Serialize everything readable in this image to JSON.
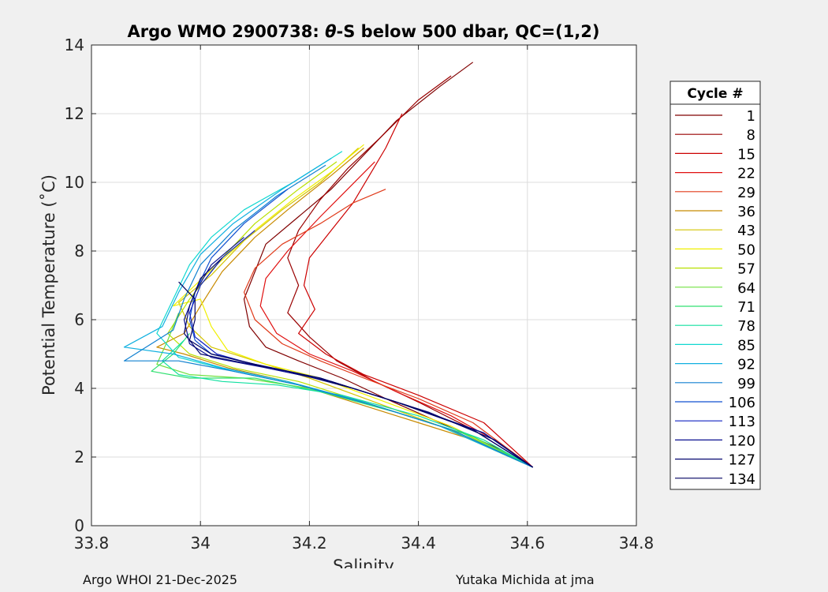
{
  "chart_data": {
    "type": "line",
    "title_prefix": "Argo WMO 2900738: ",
    "title_theta": "θ",
    "title_suffix": "-S below 500 dbar,  QC=(1,2)",
    "xlabel": "Salinity",
    "ylabel": "Potential Temperature (˚C)",
    "xlim": [
      33.8,
      34.8
    ],
    "ylim": [
      0,
      14
    ],
    "xticks": [
      33.8,
      34.0,
      34.2,
      34.4,
      34.6,
      34.8
    ],
    "xtick_labels": [
      "33.8",
      "34",
      "34.2",
      "34.4",
      "34.6",
      "34.8"
    ],
    "yticks": [
      0,
      2,
      4,
      6,
      8,
      10,
      12,
      14
    ],
    "ytick_labels": [
      "0",
      "2",
      "4",
      "6",
      "8",
      "10",
      "12",
      "14"
    ],
    "grid": true,
    "legend_title": "Cycle #",
    "legend_position": "right",
    "series": [
      {
        "name": "1",
        "color": "#800000",
        "points": [
          [
            34.5,
            13.5
          ],
          [
            34.44,
            12.8
          ],
          [
            34.36,
            11.8
          ],
          [
            34.3,
            10.8
          ],
          [
            34.24,
            9.8
          ],
          [
            34.18,
            9.0
          ],
          [
            34.12,
            8.2
          ],
          [
            34.1,
            7.4
          ],
          [
            34.08,
            6.6
          ],
          [
            34.09,
            5.8
          ],
          [
            34.12,
            5.2
          ],
          [
            34.18,
            4.8
          ],
          [
            34.26,
            4.3
          ],
          [
            34.34,
            3.7
          ],
          [
            34.44,
            3.0
          ],
          [
            34.54,
            2.3
          ],
          [
            34.61,
            1.7
          ]
        ]
      },
      {
        "name": "8",
        "color": "#990000",
        "points": [
          [
            34.46,
            13.1
          ],
          [
            34.4,
            12.4
          ],
          [
            34.33,
            11.3
          ],
          [
            34.27,
            10.4
          ],
          [
            34.22,
            9.5
          ],
          [
            34.18,
            8.6
          ],
          [
            34.16,
            7.8
          ],
          [
            34.18,
            7.0
          ],
          [
            34.16,
            6.2
          ],
          [
            34.2,
            5.5
          ],
          [
            34.25,
            4.8
          ],
          [
            34.32,
            4.2
          ],
          [
            34.4,
            3.6
          ],
          [
            34.5,
            2.8
          ],
          [
            34.61,
            1.7
          ]
        ]
      },
      {
        "name": "15",
        "color": "#cc0000",
        "points": [
          [
            34.37,
            12.0
          ],
          [
            34.34,
            11.0
          ],
          [
            34.31,
            10.2
          ],
          [
            34.28,
            9.4
          ],
          [
            34.24,
            8.6
          ],
          [
            34.2,
            7.8
          ],
          [
            34.19,
            7.0
          ],
          [
            34.21,
            6.3
          ],
          [
            34.18,
            5.6
          ],
          [
            34.23,
            5.0
          ],
          [
            34.3,
            4.4
          ],
          [
            34.4,
            3.8
          ],
          [
            34.52,
            3.0
          ],
          [
            34.61,
            1.7
          ]
        ]
      },
      {
        "name": "22",
        "color": "#e01010",
        "points": [
          [
            34.32,
            10.6
          ],
          [
            34.27,
            9.8
          ],
          [
            34.22,
            9.0
          ],
          [
            34.16,
            8.0
          ],
          [
            34.12,
            7.2
          ],
          [
            34.11,
            6.4
          ],
          [
            34.14,
            5.6
          ],
          [
            34.2,
            5.0
          ],
          [
            34.28,
            4.5
          ],
          [
            34.36,
            3.9
          ],
          [
            34.46,
            3.2
          ],
          [
            34.55,
            2.4
          ],
          [
            34.61,
            1.7
          ]
        ]
      },
      {
        "name": "29",
        "color": "#e03a1a",
        "points": [
          [
            34.34,
            9.8
          ],
          [
            34.28,
            9.4
          ],
          [
            34.22,
            8.8
          ],
          [
            34.15,
            8.2
          ],
          [
            34.1,
            7.5
          ],
          [
            34.08,
            6.8
          ],
          [
            34.1,
            6.0
          ],
          [
            34.15,
            5.3
          ],
          [
            34.22,
            4.8
          ],
          [
            34.3,
            4.3
          ],
          [
            34.4,
            3.7
          ],
          [
            34.5,
            3.0
          ],
          [
            34.61,
            1.7
          ]
        ]
      },
      {
        "name": "36",
        "color": "#c88a00",
        "points": [
          [
            34.3,
            11.0
          ],
          [
            34.24,
            10.2
          ],
          [
            34.16,
            9.2
          ],
          [
            34.1,
            8.4
          ],
          [
            34.04,
            7.4
          ],
          [
            34.0,
            6.4
          ],
          [
            33.97,
            5.6
          ],
          [
            33.92,
            5.2
          ],
          [
            33.97,
            5.0
          ],
          [
            34.05,
            4.6
          ],
          [
            34.16,
            4.2
          ],
          [
            34.28,
            3.6
          ],
          [
            34.4,
            3.0
          ],
          [
            34.52,
            2.4
          ],
          [
            34.61,
            1.7
          ]
        ]
      },
      {
        "name": "43",
        "color": "#d4c400",
        "points": [
          [
            34.29,
            11.0
          ],
          [
            34.22,
            10.0
          ],
          [
            34.15,
            9.2
          ],
          [
            34.08,
            8.3
          ],
          [
            34.02,
            7.3
          ],
          [
            33.96,
            6.5
          ],
          [
            33.98,
            5.8
          ],
          [
            34.02,
            5.2
          ],
          [
            34.1,
            4.8
          ],
          [
            34.2,
            4.3
          ],
          [
            34.32,
            3.6
          ],
          [
            34.44,
            2.9
          ],
          [
            34.55,
            2.2
          ],
          [
            34.61,
            1.7
          ]
        ]
      },
      {
        "name": "50",
        "color": "#f0f000",
        "points": [
          [
            34.3,
            11.1
          ],
          [
            34.24,
            10.3
          ],
          [
            34.17,
            9.5
          ],
          [
            34.1,
            8.6
          ],
          [
            34.03,
            7.6
          ],
          [
            33.95,
            6.4
          ],
          [
            34.0,
            6.6
          ],
          [
            34.02,
            5.8
          ],
          [
            34.05,
            5.1
          ],
          [
            34.12,
            4.7
          ],
          [
            34.22,
            4.3
          ],
          [
            34.34,
            3.6
          ],
          [
            34.46,
            2.9
          ],
          [
            34.61,
            1.7
          ]
        ]
      },
      {
        "name": "57",
        "color": "#b8e000",
        "points": [
          [
            34.25,
            10.6
          ],
          [
            34.18,
            9.8
          ],
          [
            34.1,
            8.8
          ],
          [
            34.04,
            7.8
          ],
          [
            33.98,
            6.6
          ],
          [
            33.94,
            5.6
          ],
          [
            33.98,
            5.0
          ],
          [
            34.06,
            4.6
          ],
          [
            34.18,
            4.2
          ],
          [
            34.3,
            3.6
          ],
          [
            34.44,
            2.9
          ],
          [
            34.61,
            1.7
          ]
        ]
      },
      {
        "name": "64",
        "color": "#70e040",
        "points": [
          [
            33.96,
            6.2
          ],
          [
            33.94,
            5.4
          ],
          [
            33.92,
            4.7
          ],
          [
            33.98,
            4.4
          ],
          [
            34.08,
            4.3
          ],
          [
            34.2,
            4.0
          ],
          [
            34.34,
            3.4
          ],
          [
            34.48,
            2.7
          ],
          [
            34.61,
            1.7
          ]
        ]
      },
      {
        "name": "71",
        "color": "#30e070",
        "points": [
          [
            33.98,
            5.6
          ],
          [
            33.95,
            5.0
          ],
          [
            33.91,
            4.5
          ],
          [
            33.98,
            4.3
          ],
          [
            34.1,
            4.3
          ],
          [
            34.22,
            3.9
          ],
          [
            34.36,
            3.3
          ],
          [
            34.5,
            2.6
          ],
          [
            34.61,
            1.7
          ]
        ]
      },
      {
        "name": "78",
        "color": "#10e0a0",
        "points": [
          [
            33.97,
            5.4
          ],
          [
            33.93,
            4.8
          ],
          [
            33.96,
            4.4
          ],
          [
            34.04,
            4.2
          ],
          [
            34.14,
            4.1
          ],
          [
            34.26,
            3.8
          ],
          [
            34.4,
            3.2
          ],
          [
            34.52,
            2.5
          ],
          [
            34.61,
            1.7
          ]
        ]
      },
      {
        "name": "85",
        "color": "#10d8d0",
        "points": [
          [
            34.26,
            10.9
          ],
          [
            34.17,
            10.0
          ],
          [
            34.08,
            9.2
          ],
          [
            34.02,
            8.4
          ],
          [
            33.98,
            7.6
          ],
          [
            33.95,
            6.6
          ],
          [
            33.92,
            5.6
          ],
          [
            33.96,
            4.9
          ],
          [
            34.06,
            4.5
          ],
          [
            34.18,
            4.1
          ],
          [
            34.32,
            3.5
          ],
          [
            34.46,
            2.8
          ],
          [
            34.61,
            1.7
          ]
        ]
      },
      {
        "name": "92",
        "color": "#10b0e0",
        "points": [
          [
            34.24,
            10.7
          ],
          [
            34.15,
            9.8
          ],
          [
            34.06,
            8.8
          ],
          [
            34.0,
            7.9
          ],
          [
            33.96,
            6.8
          ],
          [
            33.93,
            5.8
          ],
          [
            33.86,
            5.2
          ],
          [
            33.95,
            5.0
          ],
          [
            34.04,
            4.6
          ],
          [
            34.16,
            4.2
          ],
          [
            34.3,
            3.6
          ],
          [
            34.44,
            2.9
          ],
          [
            34.61,
            1.7
          ]
        ]
      },
      {
        "name": "99",
        "color": "#1080d0",
        "points": [
          [
            34.23,
            10.5
          ],
          [
            34.14,
            9.6
          ],
          [
            34.06,
            8.6
          ],
          [
            34.0,
            7.6
          ],
          [
            33.97,
            6.6
          ],
          [
            33.95,
            5.7
          ],
          [
            33.86,
            4.8
          ],
          [
            33.96,
            4.8
          ],
          [
            34.06,
            4.5
          ],
          [
            34.18,
            4.1
          ],
          [
            34.32,
            3.5
          ],
          [
            34.46,
            2.8
          ],
          [
            34.61,
            1.7
          ]
        ]
      },
      {
        "name": "106",
        "color": "#1050d0",
        "points": [
          [
            34.16,
            9.8
          ],
          [
            34.08,
            8.8
          ],
          [
            34.02,
            7.8
          ],
          [
            33.99,
            6.8
          ],
          [
            33.98,
            6.0
          ],
          [
            33.99,
            5.4
          ],
          [
            34.02,
            5.0
          ],
          [
            34.1,
            4.7
          ],
          [
            34.22,
            4.3
          ],
          [
            34.36,
            3.6
          ],
          [
            34.5,
            2.8
          ],
          [
            34.61,
            1.7
          ]
        ]
      },
      {
        "name": "113",
        "color": "#1020c0",
        "points": [
          [
            34.1,
            8.6
          ],
          [
            34.04,
            7.8
          ],
          [
            34.0,
            7.0
          ],
          [
            33.98,
            6.2
          ],
          [
            33.99,
            5.5
          ],
          [
            34.03,
            5.0
          ],
          [
            34.12,
            4.6
          ],
          [
            34.24,
            4.2
          ],
          [
            34.38,
            3.5
          ],
          [
            34.52,
            2.7
          ],
          [
            34.61,
            1.7
          ]
        ]
      },
      {
        "name": "120",
        "color": "#0a1090",
        "points": [
          [
            34.08,
            8.4
          ],
          [
            34.02,
            7.6
          ],
          [
            33.99,
            6.8
          ],
          [
            33.97,
            6.0
          ],
          [
            33.98,
            5.3
          ],
          [
            34.02,
            4.9
          ],
          [
            34.12,
            4.6
          ],
          [
            34.24,
            4.2
          ],
          [
            34.38,
            3.5
          ],
          [
            34.52,
            2.7
          ],
          [
            34.61,
            1.7
          ]
        ]
      },
      {
        "name": "127",
        "color": "#060870",
        "points": [
          [
            34.04,
            7.8
          ],
          [
            34.0,
            7.2
          ],
          [
            33.98,
            6.4
          ],
          [
            33.97,
            5.6
          ],
          [
            34.0,
            5.0
          ],
          [
            34.06,
            4.8
          ],
          [
            34.16,
            4.5
          ],
          [
            34.28,
            4.0
          ],
          [
            34.42,
            3.3
          ],
          [
            34.54,
            2.5
          ],
          [
            34.61,
            1.7
          ]
        ]
      },
      {
        "name": "134",
        "color": "#000060",
        "points": [
          [
            33.96,
            7.1
          ],
          [
            33.99,
            6.6
          ],
          [
            33.99,
            6.0
          ],
          [
            33.98,
            5.4
          ],
          [
            34.02,
            5.0
          ],
          [
            34.1,
            4.7
          ],
          [
            34.22,
            4.3
          ],
          [
            34.36,
            3.6
          ],
          [
            34.5,
            2.8
          ],
          [
            34.61,
            1.7
          ]
        ]
      }
    ]
  },
  "footer": {
    "left": "Argo WHOI 21-Dec-2025",
    "right": "Yutaka Michida at jma"
  }
}
